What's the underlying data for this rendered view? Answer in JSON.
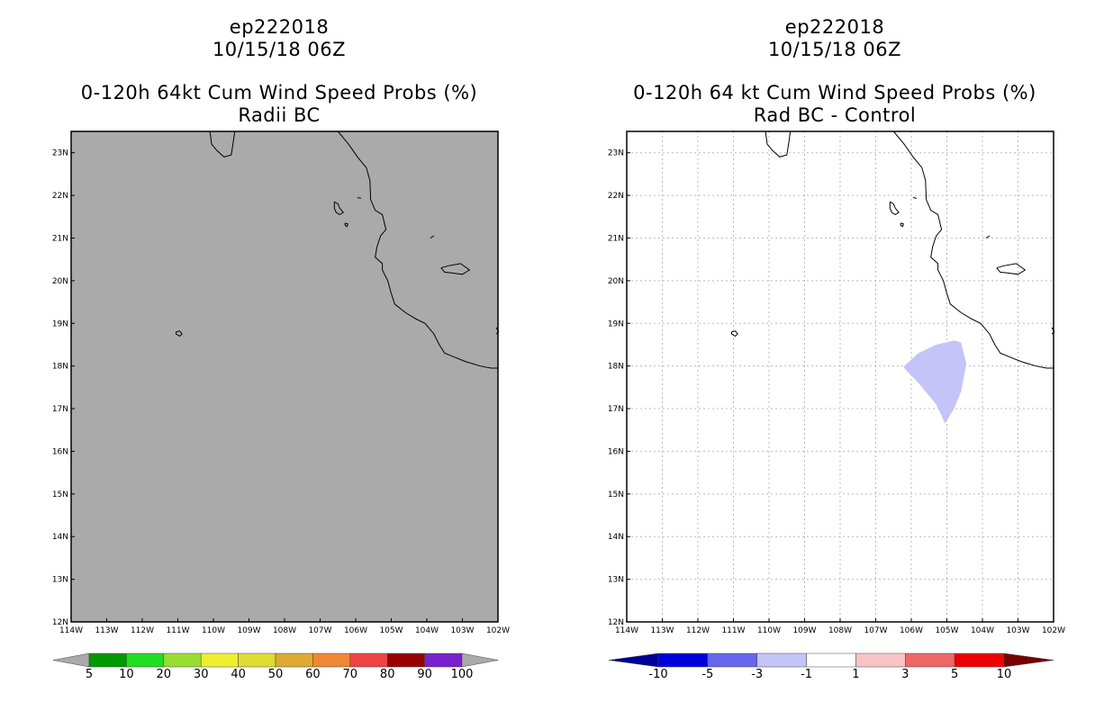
{
  "panels": [
    {
      "storm": "ep222018",
      "datetime": "10/15/18 06Z",
      "product": "0-120h 64kt Cum Wind Speed Probs (%)",
      "subtitle": "Radii BC",
      "map_fill": "#aaaaaa",
      "legend": {
        "colors": [
          "#009900",
          "#22dd22",
          "#99dd33",
          "#eeee33",
          "#dddd33",
          "#ddaa33",
          "#ee8833",
          "#ee4444",
          "#990000",
          "#7722cc"
        ],
        "low_color": "#aaaaaa",
        "high_color": "#aaaaaa",
        "labels": [
          "5",
          "10",
          "20",
          "30",
          "40",
          "50",
          "60",
          "70",
          "80",
          "90",
          "100"
        ]
      }
    },
    {
      "storm": "ep222018",
      "datetime": "10/15/18 06Z",
      "product": "0-120h 64 kt Cum Wind Speed Probs (%)",
      "subtitle": "Rad BC - Control",
      "map_fill": "#ffffff",
      "legend": {
        "colors": [
          "#0000dd",
          "#6666ee",
          "#c4c4f8",
          "#ffffff",
          "#f8c4c4",
          "#ee6666",
          "#ee0000"
        ],
        "low_color": "#000099",
        "high_color": "#770000",
        "labels": [
          "-10",
          "-5",
          "-3",
          "-1",
          "1",
          "3",
          "5",
          "10"
        ]
      },
      "anomaly_region": {
        "value_range": "-3 to -1",
        "color": "#c4c4f8",
        "polygon_lonlat": [
          [
            -106.2,
            18.0
          ],
          [
            -105.8,
            18.3
          ],
          [
            -105.3,
            18.5
          ],
          [
            -104.8,
            18.6
          ],
          [
            -104.6,
            18.55
          ],
          [
            -104.45,
            18.05
          ],
          [
            -104.6,
            17.4
          ],
          [
            -104.8,
            17.0
          ],
          [
            -105.05,
            16.65
          ],
          [
            -105.3,
            17.1
          ],
          [
            -105.8,
            17.6
          ],
          [
            -106.2,
            17.95
          ]
        ]
      }
    }
  ],
  "map": {
    "lon_range": [
      -114,
      -102
    ],
    "lat_range": [
      12,
      23.5
    ],
    "lon_ticks": [
      -114,
      -113,
      -112,
      -111,
      -110,
      -109,
      -108,
      -107,
      -106,
      -105,
      -104,
      -103,
      -102
    ],
    "lon_labels": [
      "114W",
      "113W",
      "112W",
      "111W",
      "110W",
      "109W",
      "108W",
      "107W",
      "106W",
      "105W",
      "104W",
      "103W",
      "102W"
    ],
    "lat_ticks": [
      12,
      13,
      14,
      15,
      16,
      17,
      18,
      19,
      20,
      21,
      22,
      23
    ],
    "lat_labels": [
      "12N",
      "13N",
      "14N",
      "15N",
      "16N",
      "17N",
      "18N",
      "19N",
      "20N",
      "21N",
      "22N",
      "23N"
    ],
    "coastline_lonlat": [
      [
        -106.5,
        23.5
      ],
      [
        -106.2,
        23.2
      ],
      [
        -105.95,
        22.9
      ],
      [
        -105.7,
        22.65
      ],
      [
        -105.6,
        22.35
      ],
      [
        -105.58,
        21.9
      ],
      [
        -105.45,
        21.65
      ],
      [
        -105.25,
        21.55
      ],
      [
        -105.15,
        21.2
      ],
      [
        -105.3,
        21.05
      ],
      [
        -105.4,
        20.8
      ],
      [
        -105.45,
        20.55
      ],
      [
        -105.25,
        20.4
      ],
      [
        -105.25,
        20.25
      ],
      [
        -105.1,
        20.0
      ],
      [
        -105.0,
        19.7
      ],
      [
        -104.9,
        19.45
      ],
      [
        -104.6,
        19.25
      ],
      [
        -104.3,
        19.1
      ],
      [
        -104.05,
        19.0
      ],
      [
        -103.8,
        18.75
      ],
      [
        -103.65,
        18.5
      ],
      [
        -103.5,
        18.3
      ],
      [
        -103.2,
        18.2
      ],
      [
        -102.9,
        18.1
      ],
      [
        -102.5,
        18.0
      ],
      [
        -102.2,
        17.95
      ],
      [
        -102.0,
        17.95
      ]
    ],
    "baja_tip_lonlat": [
      [
        -110.1,
        23.5
      ],
      [
        -110.05,
        23.2
      ],
      [
        -109.9,
        23.05
      ],
      [
        -109.7,
        22.9
      ],
      [
        -109.5,
        22.95
      ],
      [
        -109.45,
        23.2
      ],
      [
        -109.4,
        23.5
      ]
    ],
    "islands_lonlat": [
      [
        [
          -106.6,
          21.85
        ],
        [
          -106.5,
          21.8
        ],
        [
          -106.45,
          21.7
        ],
        [
          -106.35,
          21.6
        ],
        [
          -106.45,
          21.55
        ],
        [
          -106.55,
          21.6
        ],
        [
          -106.6,
          21.7
        ],
        [
          -106.6,
          21.85
        ]
      ],
      [
        [
          -106.3,
          21.35
        ],
        [
          -106.22,
          21.33
        ],
        [
          -106.24,
          21.27
        ],
        [
          -106.3,
          21.3
        ],
        [
          -106.3,
          21.35
        ]
      ],
      [
        [
          -105.95,
          21.95
        ],
        [
          -105.85,
          21.93
        ]
      ],
      [
        [
          -103.9,
          21.0
        ],
        [
          -103.8,
          21.05
        ]
      ],
      [
        [
          -103.6,
          20.3
        ],
        [
          -103.4,
          20.35
        ],
        [
          -103.05,
          20.4
        ],
        [
          -102.8,
          20.25
        ],
        [
          -103.0,
          20.15
        ],
        [
          -103.3,
          20.18
        ],
        [
          -103.5,
          20.2
        ],
        [
          -103.6,
          20.3
        ]
      ],
      [
        [
          -111.05,
          18.8
        ],
        [
          -110.95,
          18.82
        ],
        [
          -110.88,
          18.75
        ],
        [
          -110.95,
          18.7
        ],
        [
          -111.05,
          18.75
        ],
        [
          -111.05,
          18.8
        ]
      ],
      [
        [
          -102.05,
          18.9
        ],
        [
          -101.98,
          18.8
        ],
        [
          -102.05,
          18.75
        ]
      ]
    ]
  }
}
